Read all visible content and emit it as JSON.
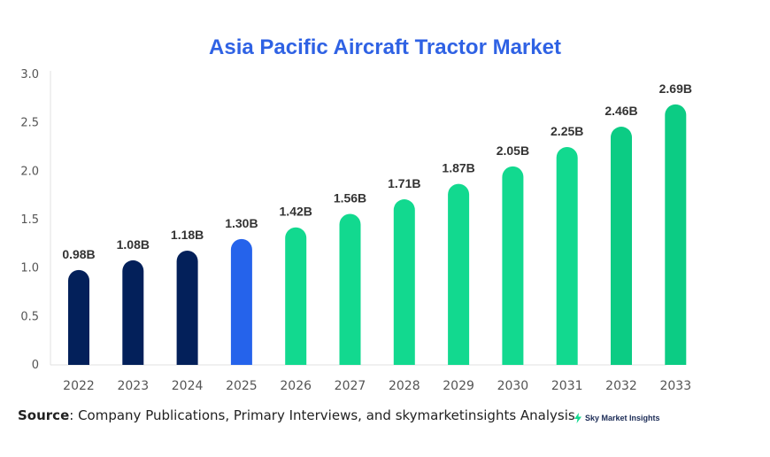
{
  "chart_data": {
    "type": "bar",
    "title": "Asia Pacific Aircraft Tractor Market",
    "xlabel": "",
    "ylabel": "",
    "ylim": [
      0,
      3.0
    ],
    "yticks": [
      "0",
      "0.5",
      "1.0",
      "1.5",
      "2.0",
      "2.5",
      "3.0"
    ],
    "grid": false,
    "categories": [
      "2022",
      "2023",
      "2024",
      "2025",
      "2026",
      "2027",
      "2028",
      "2029",
      "2030",
      "2031",
      "2032",
      "2033"
    ],
    "values": [
      0.98,
      1.08,
      1.18,
      1.3,
      1.42,
      1.56,
      1.71,
      1.87,
      2.05,
      2.25,
      2.46,
      2.69
    ],
    "labels": [
      "0.98B",
      "1.08B",
      "1.18B",
      "1.30B",
      "1.42B",
      "1.56B",
      "1.71B",
      "1.87B",
      "2.05B",
      "2.25B",
      "2.46B",
      "2.69B"
    ],
    "bar_colors": [
      "#03205a",
      "#03205a",
      "#03205a",
      "#2563eb",
      "#12d98f",
      "#12d98f",
      "#12d98f",
      "#12d98f",
      "#12d98f",
      "#12d98f",
      "#0ccc84",
      "#0ccc84"
    ]
  },
  "source": {
    "label": "Source",
    "text": ": Company Publications, Primary Interviews, and skymarketinsights Analysis"
  },
  "brand": {
    "name": "Sky Market Insights",
    "icon": "lightning-bolt-icon",
    "color": "#12d98f"
  }
}
